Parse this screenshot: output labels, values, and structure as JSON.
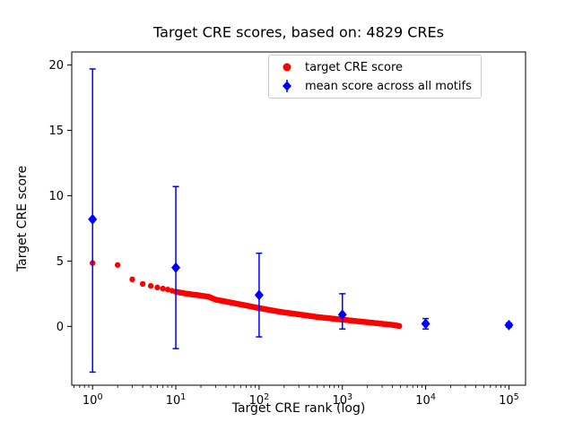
{
  "chart_data": {
    "type": "scatter",
    "title": "Target CRE scores, based on: 4829 CREs",
    "xlabel": "Target CRE rank (log)",
    "ylabel": "Target CRE score",
    "x_scale": "log",
    "xlim_log10": [
      -0.25,
      5.2
    ],
    "ylim": [
      -4.5,
      21.0
    ],
    "x_ticks": [
      1,
      10,
      100,
      1000,
      10000,
      100000
    ],
    "y_ticks": [
      0,
      5,
      10,
      15,
      20
    ],
    "grid": false,
    "legend": {
      "position": "upper center-right",
      "entries": [
        {
          "label": "target CRE score",
          "marker": "circle",
          "color": "#ff0000"
        },
        {
          "label": "mean score across all motifs",
          "marker": "diamond",
          "color": "#0000ff"
        }
      ]
    },
    "series": [
      {
        "name": "target CRE score",
        "type": "scatter",
        "marker": "circle",
        "color": "#ff0000",
        "x_range": [
          1,
          4829
        ],
        "control_points": [
          [
            1,
            4.85
          ],
          [
            2,
            4.7
          ],
          [
            3,
            3.6
          ],
          [
            4,
            3.25
          ],
          [
            5,
            3.1
          ],
          [
            6,
            2.98
          ],
          [
            8,
            2.82
          ],
          [
            10,
            2.65
          ],
          [
            13,
            2.52
          ],
          [
            16,
            2.44
          ],
          [
            20,
            2.36
          ],
          [
            25,
            2.26
          ],
          [
            30,
            2.05
          ],
          [
            40,
            1.9
          ],
          [
            50,
            1.78
          ],
          [
            70,
            1.6
          ],
          [
            100,
            1.4
          ],
          [
            150,
            1.2
          ],
          [
            200,
            1.07
          ],
          [
            300,
            0.92
          ],
          [
            500,
            0.72
          ],
          [
            700,
            0.62
          ],
          [
            1000,
            0.52
          ],
          [
            1500,
            0.4
          ],
          [
            2000,
            0.32
          ],
          [
            3000,
            0.2
          ],
          [
            4000,
            0.12
          ],
          [
            4829,
            0.03
          ]
        ]
      },
      {
        "name": "mean score across all motifs",
        "type": "errorbar",
        "marker": "diamond",
        "color": "#0000ff",
        "x": [
          1,
          10,
          100,
          1000,
          10000,
          100000
        ],
        "mean": [
          8.2,
          4.5,
          2.4,
          0.9,
          0.2,
          0.1
        ],
        "err_low": [
          -3.5,
          -1.7,
          -0.8,
          -0.2,
          -0.2,
          -0.05
        ],
        "err_high": [
          19.7,
          10.7,
          5.6,
          2.5,
          0.6,
          0.25
        ]
      }
    ]
  }
}
